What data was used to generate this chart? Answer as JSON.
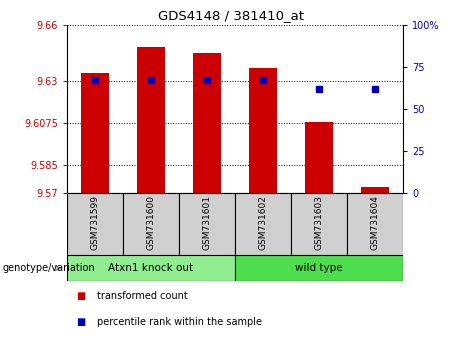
{
  "title": "GDS4148 / 381410_at",
  "samples": [
    "GSM731599",
    "GSM731600",
    "GSM731601",
    "GSM731602",
    "GSM731603",
    "GSM731604"
  ],
  "transformed_counts": [
    9.634,
    9.648,
    9.645,
    9.637,
    9.608,
    9.573
  ],
  "percentile_ranks": [
    67,
    67,
    67,
    67,
    62,
    62
  ],
  "ylim_left": [
    9.57,
    9.66
  ],
  "ylim_right": [
    0,
    100
  ],
  "yticks_left": [
    9.57,
    9.585,
    9.6075,
    9.63,
    9.66
  ],
  "ytick_labels_left": [
    "9.57",
    "9.585",
    "9.6075",
    "9.63",
    "9.66"
  ],
  "yticks_right": [
    0,
    25,
    50,
    75,
    100
  ],
  "ytick_labels_right": [
    "0",
    "25",
    "50",
    "75",
    "100%"
  ],
  "groups": [
    {
      "name": "Atxn1 knock out",
      "samples_idx": [
        0,
        1,
        2
      ],
      "color": "#90EE90"
    },
    {
      "name": "wild type",
      "samples_idx": [
        3,
        4,
        5
      ],
      "color": "#4DDD4D"
    }
  ],
  "bar_color": "#CC0000",
  "dot_color": "#0000BB",
  "bar_bottom": 9.57,
  "background_color": "#FFFFFF",
  "plot_bg": "#FFFFFF",
  "tick_bg_color": "#D0D0D0",
  "genotype_label": "genotype/variation",
  "legend_items": [
    {
      "label": "transformed count",
      "color": "#CC0000"
    },
    {
      "label": "percentile rank within the sample",
      "color": "#0000BB"
    }
  ]
}
